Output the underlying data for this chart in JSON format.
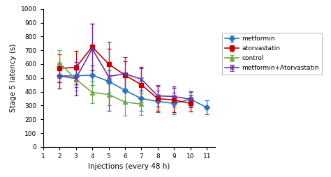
{
  "x": [
    2,
    3,
    4,
    5,
    6,
    7,
    8,
    9,
    10,
    11
  ],
  "metformin": {
    "y": [
      515,
      515,
      520,
      475,
      410,
      350,
      330,
      315,
      345,
      285
    ],
    "yerr": [
      90,
      80,
      70,
      80,
      100,
      90,
      80,
      80,
      60,
      50
    ],
    "color": "#2E75B6",
    "marker": "D",
    "label": "metformin"
  },
  "atorvastatin": {
    "y": [
      570,
      575,
      725,
      600,
      520,
      450,
      350,
      340,
      315,
      null
    ],
    "yerr": [
      100,
      120,
      170,
      110,
      100,
      130,
      90,
      90,
      60,
      null
    ],
    "color": "#C00000",
    "marker": "s",
    "label": "atorvastatin"
  },
  "control": {
    "y": [
      610,
      490,
      395,
      380,
      325,
      310,
      null,
      null,
      null,
      null
    ],
    "yerr": [
      90,
      80,
      80,
      80,
      100,
      80,
      null,
      null,
      null,
      null
    ],
    "color": "#70AD47",
    "marker": "^",
    "label": "control"
  },
  "metformin_atorvastatin": {
    "y": [
      515,
      495,
      710,
      510,
      530,
      490,
      370,
      365,
      345,
      null
    ],
    "yerr": [
      90,
      120,
      185,
      250,
      120,
      80,
      80,
      75,
      55,
      null
    ],
    "color": "#7030A0",
    "marker": "x",
    "label": "metformin+Atorvastatin"
  },
  "xlim": [
    1,
    11.5
  ],
  "ylim": [
    0,
    1000
  ],
  "yticks": [
    0,
    100,
    200,
    300,
    400,
    500,
    600,
    700,
    800,
    900,
    1000
  ],
  "xticks": [
    1,
    2,
    3,
    4,
    5,
    6,
    7,
    8,
    9,
    10,
    11
  ],
  "xlabel": "Injections (every 48 h)",
  "ylabel": "Stage 5 latency (s)",
  "background_color": "#ffffff",
  "legend_labels": [
    "metformin",
    "atorvastatin",
    "control",
    "metformin+Atorvastatin"
  ]
}
